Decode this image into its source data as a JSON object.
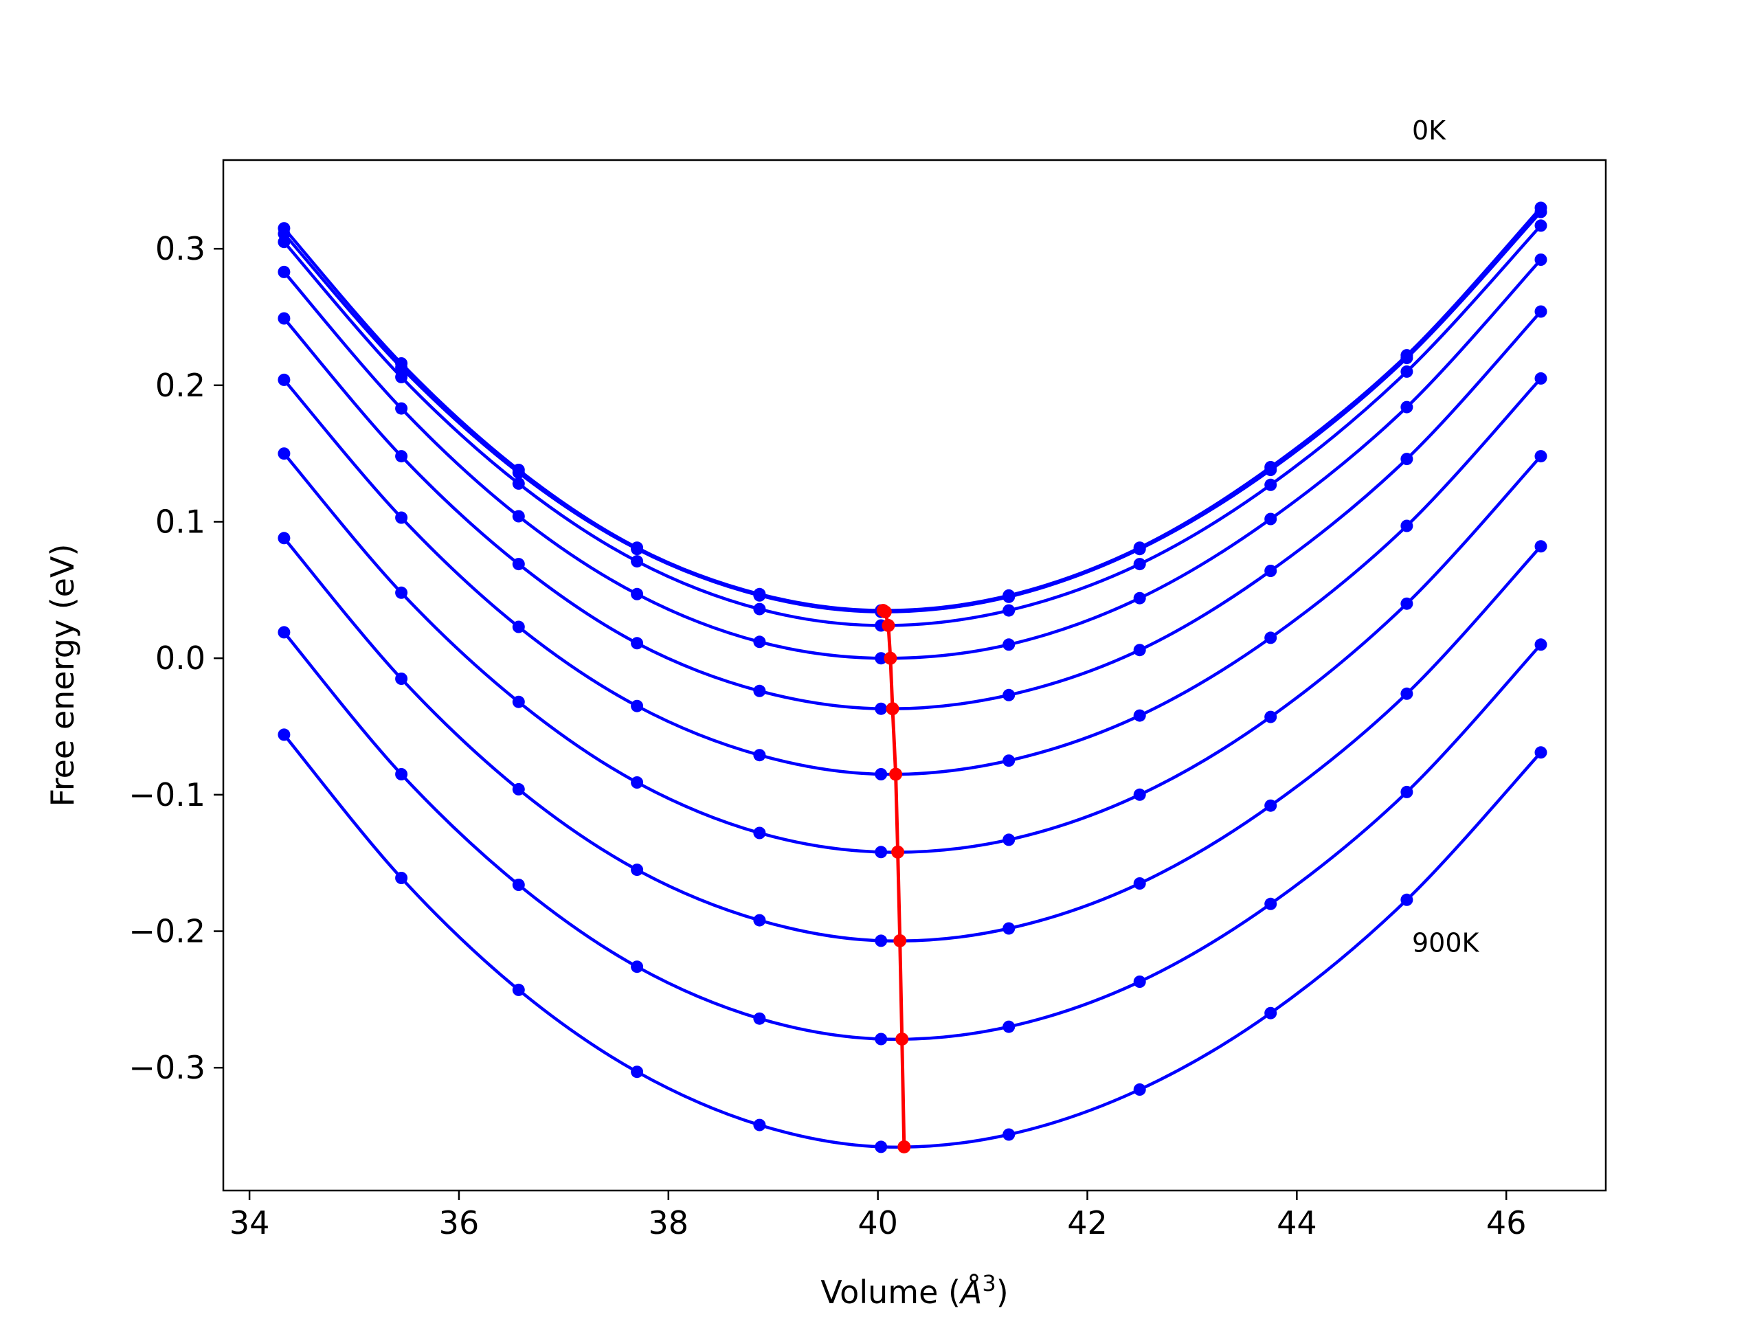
{
  "chart_data": {
    "type": "line",
    "title": "",
    "xlabel": "Volume (",
    "xlabel_symbol": "Å",
    "xlabel_exp": "3",
    "xlabel_close": ")",
    "ylabel": "Free energy (eV)",
    "xlim": [
      33.75,
      46.95
    ],
    "ylim": [
      -0.39,
      0.365
    ],
    "xticks": [
      34,
      36,
      38,
      40,
      42,
      44,
      46
    ],
    "xtick_labels": [
      "34",
      "36",
      "38",
      "40",
      "42",
      "44",
      "46"
    ],
    "yticks": [
      0.3,
      0.2,
      0.1,
      0.0,
      -0.1,
      -0.2,
      -0.3
    ],
    "ytick_labels": [
      "0.3",
      "0.2",
      "0.1",
      "0.0",
      "−0.1",
      "−0.2",
      "−0.3"
    ],
    "grid": false,
    "annotations": [
      {
        "text": "0K",
        "x": 45.1,
        "y": 0.38
      },
      {
        "text": "900K",
        "x": 45.1,
        "y": -0.215
      }
    ],
    "colors": {
      "curves": "#0000ff",
      "minimum_line": "#ff0000",
      "axes": "#000000"
    },
    "x": [
      34.33,
      35.45,
      36.57,
      37.7,
      38.87,
      40.03,
      41.25,
      42.5,
      43.75,
      45.05,
      46.33
    ],
    "series": [
      {
        "values": [
          0.315,
          0.216,
          0.138,
          0.081,
          0.047,
          0.035,
          0.046,
          0.081,
          0.14,
          0.222,
          0.33
        ]
      },
      {
        "values": [
          0.311,
          0.213,
          0.136,
          0.08,
          0.046,
          0.034,
          0.045,
          0.08,
          0.138,
          0.22,
          0.327
        ]
      },
      {
        "values": [
          0.305,
          0.206,
          0.128,
          0.071,
          0.036,
          0.024,
          0.035,
          0.069,
          0.127,
          0.21,
          0.317
        ]
      },
      {
        "values": [
          0.283,
          0.183,
          0.104,
          0.047,
          0.012,
          0.0,
          0.01,
          0.044,
          0.102,
          0.184,
          0.292
        ]
      },
      {
        "values": [
          0.249,
          0.148,
          0.069,
          0.011,
          -0.024,
          -0.037,
          -0.027,
          0.006,
          0.064,
          0.146,
          0.254
        ]
      },
      {
        "values": [
          0.204,
          0.103,
          0.023,
          -0.035,
          -0.071,
          -0.085,
          -0.075,
          -0.042,
          0.015,
          0.097,
          0.205
        ]
      },
      {
        "values": [
          0.15,
          0.048,
          -0.032,
          -0.091,
          -0.128,
          -0.142,
          -0.133,
          -0.1,
          -0.043,
          0.04,
          0.148
        ]
      },
      {
        "values": [
          0.088,
          -0.015,
          -0.096,
          -0.155,
          -0.192,
          -0.207,
          -0.198,
          -0.165,
          -0.108,
          -0.026,
          0.082
        ]
      },
      {
        "values": [
          0.019,
          -0.085,
          -0.166,
          -0.226,
          -0.264,
          -0.279,
          -0.27,
          -0.237,
          -0.18,
          -0.098,
          0.01
        ]
      },
      {
        "values": [
          -0.056,
          -0.161,
          -0.243,
          -0.303,
          -0.342,
          -0.358,
          -0.349,
          -0.316,
          -0.26,
          -0.177,
          -0.069
        ]
      }
    ],
    "minimum_points": {
      "x": [
        40.05,
        40.07,
        40.1,
        40.12,
        40.14,
        40.17,
        40.19,
        40.21,
        40.23,
        40.25
      ],
      "y": [
        0.035,
        0.034,
        0.024,
        0.0,
        -0.037,
        -0.085,
        -0.142,
        -0.207,
        -0.279,
        -0.358
      ]
    }
  }
}
